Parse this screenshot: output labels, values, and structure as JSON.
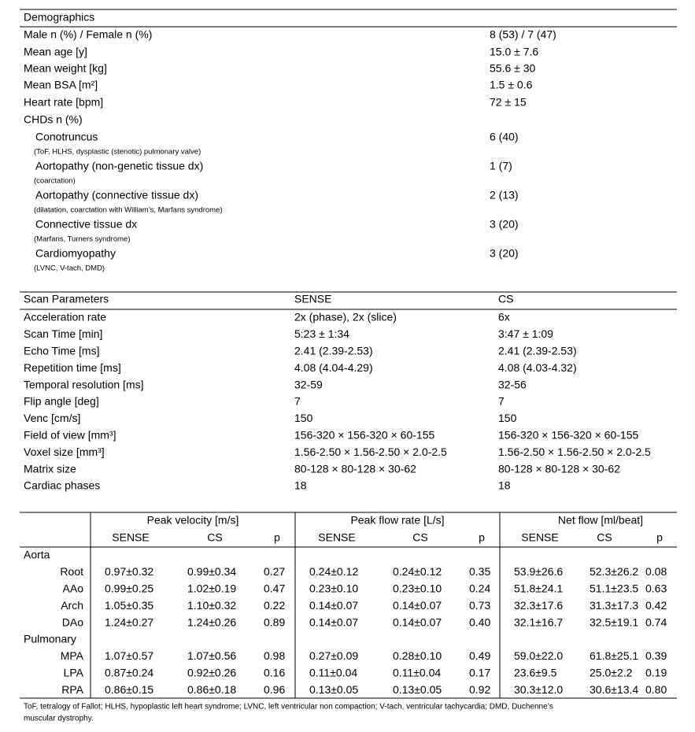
{
  "demographics": {
    "title": "Demographics",
    "rows": [
      [
        "Male n (%) / Female n (%)",
        "8 (53) / 7 (47)"
      ],
      [
        "Mean age [y]",
        "15.0 ± 7.6"
      ],
      [
        "Mean weight [kg]",
        "55.6 ± 30"
      ],
      [
        "Mean BSA [m²]",
        "1.5 ± 0.6"
      ],
      [
        "Heart rate [bpm]",
        "72 ± 15"
      ]
    ],
    "chds_label": "CHDs n (%)",
    "chds": [
      {
        "name": "Conotruncus",
        "detail": "(ToF, HLHS, dysplastic (stenotic) pulmonary valve)",
        "value": "6 (40)"
      },
      {
        "name": "Aortopathy (non-genetic tissue dx)",
        "detail": "(coarctation)",
        "value": "1 (7)"
      },
      {
        "name": "Aortopathy (connective tissue dx)",
        "detail": "(dilatation, coarctation with William’s, Marfans syndrome)",
        "value": "2 (13)"
      },
      {
        "name": "Connective tissue dx",
        "detail": "(Marfans, Turners syndrome)",
        "value": "3 (20)"
      },
      {
        "name": "Cardiomyopathy",
        "detail": "(LVNC, V-tach, DMD)",
        "value": "3 (20)"
      }
    ]
  },
  "scan_parameters": {
    "header": [
      "Scan Parameters",
      "SENSE",
      "CS"
    ],
    "rows": [
      [
        "Acceleration rate",
        "2x (phase), 2x (slice)",
        "6x"
      ],
      [
        "Scan Time [min]",
        "5:23 ± 1:34",
        "3:47 ± 1:09"
      ],
      [
        "Echo Time [ms]",
        "2.41 (2.39-2.53)",
        "2.41 (2.39-2.53)"
      ],
      [
        "Repetition time [ms]",
        "4.08 (4.04-4.29)",
        "4.08 (4.03-4.32)"
      ],
      [
        "Temporal resolution [ms]",
        "32-59",
        "32-56"
      ],
      [
        "Flip angle [deg]",
        "7",
        "7"
      ],
      [
        "Venc [cm/s]",
        "150",
        "150"
      ],
      [
        "Field of view [mm³]",
        "156-320 × 156-320 × 60-155",
        "156-320 × 156-320 × 60-155"
      ],
      [
        "Voxel size [mm³]",
        "1.56-2.50 × 1.56-2.50 × 2.0-2.5",
        "1.56-2.50 × 1.56-2.50 × 2.0-2.5"
      ],
      [
        "Matrix size",
        "80-128 × 80-128 × 30-62",
        "80-128 × 80-128 × 30-62"
      ],
      [
        "Cardiac phases",
        "18",
        "18"
      ]
    ]
  },
  "flow": {
    "groups": [
      "Peak velocity [m/s]",
      "Peak flow rate [L/s]",
      "Net flow [ml/beat]"
    ],
    "subheaders": [
      "SENSE",
      "CS",
      "p"
    ],
    "sections": [
      {
        "name": "Aorta",
        "rows": [
          {
            "label": "Root",
            "values": [
              "0.97±0.32",
              "0.99±0.34",
              "0.27",
              "0.24±0.12",
              "0.24±0.12",
              "0.35",
              "53.9±26.6",
              "52.3±26.2",
              "0.08"
            ]
          },
          {
            "label": "AAo",
            "values": [
              "0.99±0.25",
              "1.02±0.19",
              "0.47",
              "0.23±0.10",
              "0.23±0.10",
              "0.24",
              "51.8±24.1",
              "51.1±23.5",
              "0.63"
            ]
          },
          {
            "label": "Arch",
            "values": [
              "1.05±0.35",
              "1.10±0.32",
              "0.22",
              "0.14±0.07",
              "0.14±0.07",
              "0.73",
              "32.3±17.6",
              "31.3±17.3",
              "0.42"
            ]
          },
          {
            "label": "DAo",
            "values": [
              "1.24±0.27",
              "1.24±0.26",
              "0.89",
              "0.14±0.07",
              "0.14±0.07",
              "0.40",
              "32.1±16.7",
              "32.5±19.1",
              "0.74"
            ]
          }
        ]
      },
      {
        "name": "Pulmonary",
        "rows": [
          {
            "label": "MPA",
            "values": [
              "1.07±0.57",
              "1.07±0.56",
              "0.98",
              "0.27±0.09",
              "0.28±0.10",
              "0.49",
              "59.0±22.0",
              "61.8±25.1",
              "0.39"
            ]
          },
          {
            "label": "LPA",
            "values": [
              "0.87±0.24",
              "0.92±0.26",
              "0.16",
              "0.11±0.04",
              "0.11±0.04",
              "0.17",
              "23.6±9.5",
              "25.0±2.2",
              "0.19"
            ]
          },
          {
            "label": "RPA",
            "values": [
              "0.86±0.15",
              "0.86±0.18",
              "0.96",
              "0.13±0.05",
              "0.13±0.05",
              "0.92",
              "30.3±12.0",
              "30.6±13.4",
              "0.80"
            ]
          }
        ]
      }
    ]
  },
  "footnote": [
    "ToF, tetralogy of Fallot; HLHS, hypoplastic left heart syndrome; LVNC, left ventricular non compaction; V-tach, ventricular tachycardia; DMD, Duchenne’s",
    "muscular dystrophy."
  ]
}
